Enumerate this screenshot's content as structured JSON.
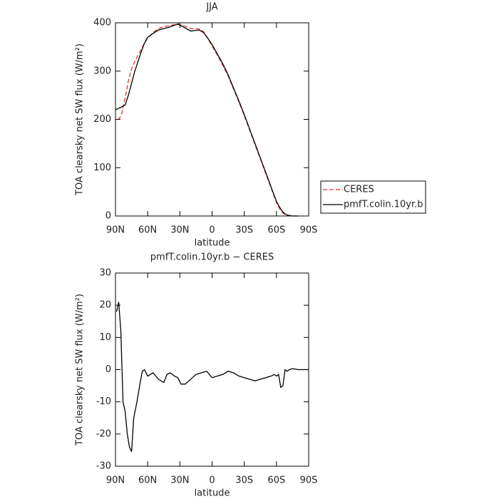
{
  "chart_data": [
    {
      "type": "line",
      "title": "JJA",
      "xlabel": "latitude",
      "ylabel": "TOA clearsky net SW flux (W/m²)",
      "xlim": [
        90,
        -90
      ],
      "xticks": [
        {
          "value": 90,
          "label": "90N"
        },
        {
          "value": 60,
          "label": "60N"
        },
        {
          "value": 30,
          "label": "30N"
        },
        0,
        {
          "value": -30,
          "label": "30S"
        },
        {
          "value": -60,
          "label": "60S"
        },
        {
          "value": -90,
          "label": "90S"
        }
      ],
      "ylim": [
        0,
        400
      ],
      "yticks": [
        0,
        100,
        200,
        300,
        400
      ],
      "legend": "right",
      "series": [
        {
          "name": "CERES",
          "color": "#e03030",
          "dashed": true,
          "x": [
            88,
            86,
            84,
            82,
            80,
            78,
            75,
            72,
            69,
            66,
            63,
            60,
            55,
            50,
            45,
            40,
            35,
            32,
            28,
            24,
            20,
            16,
            12,
            8,
            4,
            0,
            -5,
            -10,
            -15,
            -20,
            -25,
            -30,
            -35,
            -40,
            -45,
            -50,
            -55,
            -60,
            -63,
            -66,
            -69,
            -72,
            -75,
            -80
          ],
          "values": [
            200,
            203,
            213,
            235,
            255,
            280,
            305,
            320,
            333,
            345,
            358,
            368,
            380,
            388,
            392,
            394,
            396,
            398,
            395,
            392,
            388,
            388,
            387,
            382,
            368,
            352,
            333,
            312,
            290,
            263,
            236,
            208,
            178,
            148,
            118,
            88,
            58,
            28,
            15,
            6,
            2,
            1,
            0,
            0
          ]
        },
        {
          "name": "pmfT.colin.10yr.b",
          "color": "#000000",
          "dashed": false,
          "x": [
            90,
            87,
            84,
            81,
            78,
            75,
            72,
            69,
            66,
            63,
            60,
            55,
            50,
            45,
            40,
            35,
            32,
            28,
            24,
            20,
            16,
            12,
            8,
            4,
            0,
            -5,
            -10,
            -15,
            -20,
            -25,
            -30,
            -35,
            -40,
            -45,
            -50,
            -55,
            -60,
            -63,
            -66,
            -69,
            -72,
            -75,
            -80
          ],
          "values": [
            220,
            223,
            226,
            230,
            250,
            275,
            300,
            320,
            340,
            358,
            370,
            378,
            385,
            388,
            391,
            395,
            397,
            393,
            388,
            383,
            384,
            385,
            380,
            368,
            355,
            335,
            315,
            292,
            265,
            238,
            210,
            180,
            150,
            120,
            90,
            60,
            30,
            18,
            8,
            3,
            1,
            0,
            0
          ]
        }
      ]
    },
    {
      "type": "line",
      "title": "pmfT.colin.10yr.b − CERES",
      "xlabel": "latitude",
      "ylabel": "TOA clearsky net SW flux (W/m²)",
      "xlim": [
        90,
        -90
      ],
      "xticks": [
        {
          "value": 90,
          "label": "90N"
        },
        {
          "value": 60,
          "label": "60N"
        },
        {
          "value": 30,
          "label": "30N"
        },
        0,
        {
          "value": -30,
          "label": "30S"
        },
        {
          "value": -60,
          "label": "60S"
        },
        {
          "value": -90,
          "label": "90S"
        }
      ],
      "ylim": [
        -30,
        30
      ],
      "yticks": [
        30,
        20,
        10,
        0,
        -10,
        -20,
        -30
      ],
      "color": "#000000",
      "x": [
        89,
        87,
        85,
        83,
        81,
        79,
        77,
        75,
        73,
        70,
        67,
        65,
        63,
        60,
        55,
        50,
        45,
        42,
        39,
        35,
        32,
        29,
        25,
        20,
        15,
        10,
        5,
        0,
        -5,
        -10,
        -15,
        -20,
        -25,
        -30,
        -35,
        -40,
        -45,
        -50,
        -55,
        -58,
        -60,
        -62,
        -64,
        -66,
        -68,
        -70,
        -72,
        -75,
        -80,
        -85,
        -90
      ],
      "values": [
        18,
        21,
        12,
        -10,
        -13,
        -20,
        -24,
        -25.5,
        -15,
        -10,
        -4,
        -0.5,
        0,
        -2,
        -1,
        -3,
        -4,
        -1.5,
        -1,
        -2,
        -2.5,
        -4.5,
        -4.5,
        -3,
        -1.5,
        -1,
        -0.5,
        -2.5,
        -2,
        -1.5,
        -0.5,
        -1,
        -2,
        -2.5,
        -3,
        -3.5,
        -3,
        -2.5,
        -2,
        -1.5,
        -2,
        -1.5,
        -5.5,
        -5,
        0,
        -0.5,
        0,
        0.3,
        0,
        0,
        0
      ]
    }
  ]
}
